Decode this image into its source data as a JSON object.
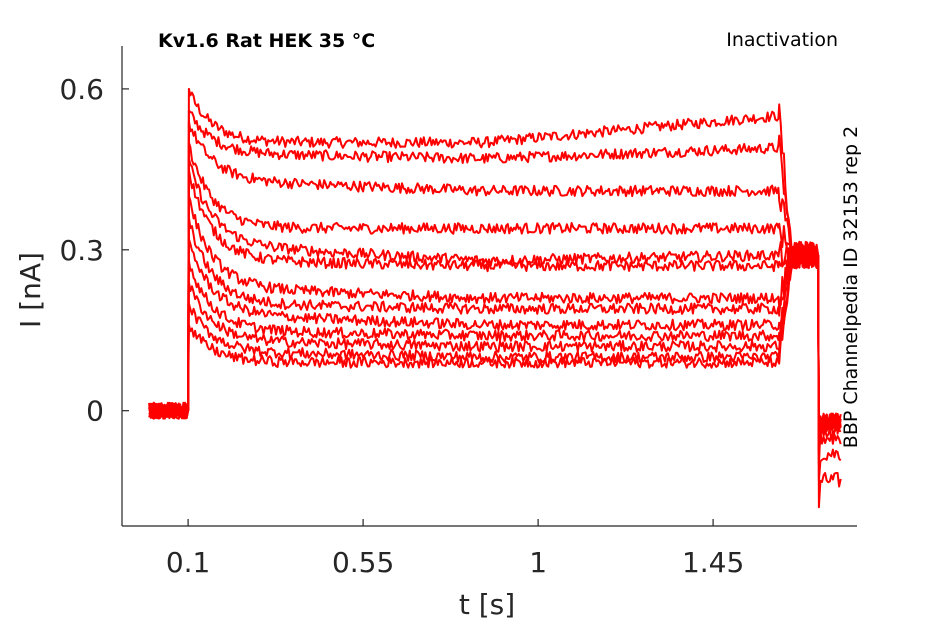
{
  "chart_data": {
    "type": "line",
    "title_left": "Kv1.6  Rat  HEK  35 °C",
    "title_right": "Inactivation",
    "side_label": "BBP Channelpedia ID 32153 rep 2",
    "xlabel": "t [s]",
    "ylabel": "I [nA]",
    "xlim": [
      -0.07,
      1.82
    ],
    "ylim": [
      -0.215,
      0.68
    ],
    "xticks": [
      0.1,
      0.55,
      1,
      1.45
    ],
    "xtick_labels": [
      "0.1",
      "0.55",
      "1",
      "1.45"
    ],
    "yticks": [
      0,
      0.3,
      0.6
    ],
    "ytick_labels": [
      "0",
      "0.3",
      "0.6"
    ],
    "grid": false,
    "color": "#ff0000",
    "step_start_s": 0.1,
    "step_end_s": 1.62,
    "tail_start_s": 1.72,
    "tail_end_s": 1.78,
    "baseline_nA": 0.0,
    "series": [
      {
        "peak": 0.6,
        "start": 0.5,
        "mid": 0.5,
        "end": 0.55,
        "tail": -0.13
      },
      {
        "peak": 0.56,
        "start": 0.48,
        "mid": 0.47,
        "end": 0.49,
        "tail": -0.08
      },
      {
        "peak": 0.54,
        "start": 0.43,
        "mid": 0.41,
        "end": 0.41,
        "tail": -0.05
      },
      {
        "peak": 0.5,
        "start": 0.34,
        "mid": 0.34,
        "end": 0.34,
        "tail": -0.03
      },
      {
        "peak": 0.47,
        "start": 0.31,
        "mid": 0.28,
        "end": 0.29,
        "tail": -0.02
      },
      {
        "peak": 0.45,
        "start": 0.28,
        "mid": 0.27,
        "end": 0.27,
        "tail": -0.02
      },
      {
        "peak": 0.4,
        "start": 0.23,
        "mid": 0.21,
        "end": 0.21,
        "tail": -0.02
      },
      {
        "peak": 0.36,
        "start": 0.2,
        "mid": 0.19,
        "end": 0.19,
        "tail": -0.03
      },
      {
        "peak": 0.32,
        "start": 0.18,
        "mid": 0.16,
        "end": 0.16,
        "tail": -0.04
      },
      {
        "peak": 0.28,
        "start": 0.15,
        "mid": 0.14,
        "end": 0.14,
        "tail": -0.03
      },
      {
        "peak": 0.24,
        "start": 0.13,
        "mid": 0.12,
        "end": 0.12,
        "tail": -0.02
      },
      {
        "peak": 0.2,
        "start": 0.11,
        "mid": 0.1,
        "end": 0.1,
        "tail": -0.02
      },
      {
        "peak": 0.16,
        "start": 0.09,
        "mid": 0.09,
        "end": 0.09,
        "tail": -0.02
      }
    ]
  }
}
